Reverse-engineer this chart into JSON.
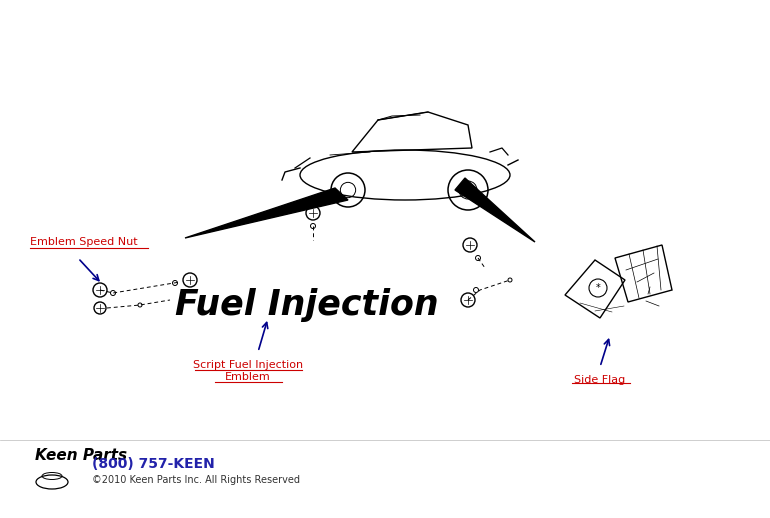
{
  "bg_color": "#ffffff",
  "label_emblem_speed_nut": "Emblem Speed Nut",
  "label_script_fuel_line1": "Script Fuel Injection",
  "label_script_fuel_line2": "Emblem",
  "label_side_flag": "Side Flag",
  "phone_text": "(800) 757-KEEN",
  "copyright_text": "©2010 Keen Parts Inc. All Rights Reserved",
  "label_color": "#cc0000",
  "arrow_color": "#00008b",
  "footer_phone_color": "#2222aa",
  "footer_copy_color": "#333333",
  "figsize": [
    7.7,
    5.18
  ],
  "dpi": 100
}
